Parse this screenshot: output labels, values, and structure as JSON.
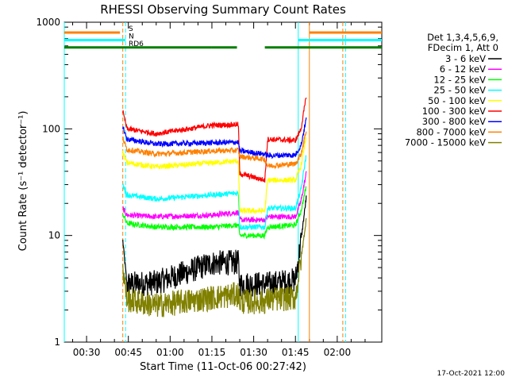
{
  "chart_data": {
    "type": "line",
    "title": "RHESSI Observing Summary Count Rates",
    "xlabel": "Start Time (11-Oct-06 00:27:42)",
    "ylabel": "Count Rate (s⁻¹ detector⁻¹)",
    "y_scale": "log",
    "ylim": [
      1,
      1000
    ],
    "xlim_minutes_after_00h": [
      22,
      136
    ],
    "x_ticks": [
      {
        "value": 30,
        "label": "00:30"
      },
      {
        "value": 45,
        "label": "00:45"
      },
      {
        "value": 60,
        "label": "01:00"
      },
      {
        "value": 75,
        "label": "01:15"
      },
      {
        "value": 90,
        "label": "01:30"
      },
      {
        "value": 105,
        "label": "01:45"
      },
      {
        "value": 120,
        "label": "02:00"
      }
    ],
    "y_ticks": [
      {
        "value": 1,
        "label": "1"
      },
      {
        "value": 10,
        "label": "10"
      },
      {
        "value": 100,
        "label": "100"
      },
      {
        "value": 1000,
        "label": "1000"
      }
    ],
    "legend_header": [
      "Det 1,3,4,5,6,9,",
      "FDecim 1, Att 0"
    ],
    "legend_placement": "right",
    "x_breakpoints_minutes": [
      43,
      44.5,
      55,
      75,
      84.5,
      85,
      94,
      95,
      105,
      107,
      109
    ],
    "series": [
      {
        "name": "3 - 6 keV",
        "color": "#000000",
        "values": [
          9,
          3.5,
          3.6,
          5.5,
          5.6,
          3.5,
          3.5,
          3.5,
          3.8,
          9,
          24
        ]
      },
      {
        "name": "6 - 12 keV",
        "color": "#ff00ff",
        "values": [
          18,
          15.5,
          15,
          15.5,
          16.5,
          14,
          14,
          15,
          15,
          21,
          40
        ]
      },
      {
        "name": "12 - 25 keV",
        "color": "#00ff00",
        "values": [
          16,
          13,
          12,
          12,
          12.5,
          10,
          10,
          12,
          12.5,
          17,
          30
        ]
      },
      {
        "name": "25 - 50 keV",
        "color": "#00ffff",
        "values": [
          30,
          24,
          22,
          24,
          25,
          12,
          12,
          18,
          18,
          27,
          60
        ]
      },
      {
        "name": "50 - 100 keV",
        "color": "#ffff00",
        "values": [
          60,
          48,
          44,
          48,
          50,
          17,
          17,
          33,
          33,
          45,
          90
        ]
      },
      {
        "name": "100 - 300 keV",
        "color": "#ff0000",
        "values": [
          145,
          100,
          90,
          108,
          110,
          38,
          33,
          80,
          78,
          100,
          210
        ]
      },
      {
        "name": "300 - 800 keV",
        "color": "#0000ff",
        "values": [
          105,
          80,
          72,
          74,
          75,
          62,
          58,
          56,
          57,
          70,
          130
        ]
      },
      {
        "name": "800 - 7000 keV",
        "color": "#ff8000",
        "values": [
          82,
          64,
          58,
          62,
          63,
          55,
          52,
          45,
          47,
          58,
          100
        ]
      },
      {
        "name": "7000 - 15000 keV",
        "color": "#808000",
        "values": [
          5,
          2.5,
          2.2,
          2.6,
          2.8,
          2.4,
          2.4,
          2.5,
          2.6,
          6,
          15
        ]
      }
    ],
    "flag_bars": [
      {
        "label": "S",
        "color": "#ff8000",
        "y": 800,
        "segments": [
          [
            22,
            42
          ],
          [
            110,
            136
          ]
        ]
      },
      {
        "label": "N",
        "color": "#00ffff",
        "y": 680,
        "segments": [
          [
            22,
            44
          ],
          [
            106,
            136
          ]
        ]
      },
      {
        "label": "RD6",
        "color": "#007f00",
        "y": 580,
        "segments": [
          [
            22,
            75
          ],
          [
            75,
            84
          ],
          [
            94,
            136
          ]
        ]
      }
    ],
    "vertical_lines": [
      {
        "x": 22,
        "color": "#00ffff",
        "style": "solid"
      },
      {
        "x": 43,
        "color": "#ff8000",
        "style": "dashed"
      },
      {
        "x": 44,
        "color": "#00ffff",
        "style": "dashed"
      },
      {
        "x": 106,
        "color": "#00ffff",
        "style": "solid"
      },
      {
        "x": 110,
        "color": "#ff8000",
        "style": "solid"
      },
      {
        "x": 122,
        "color": "#ff8000",
        "style": "dashed"
      },
      {
        "x": 123,
        "color": "#00ffff",
        "style": "dashed"
      }
    ],
    "footer_date": "17-Oct-2021 12:00"
  }
}
